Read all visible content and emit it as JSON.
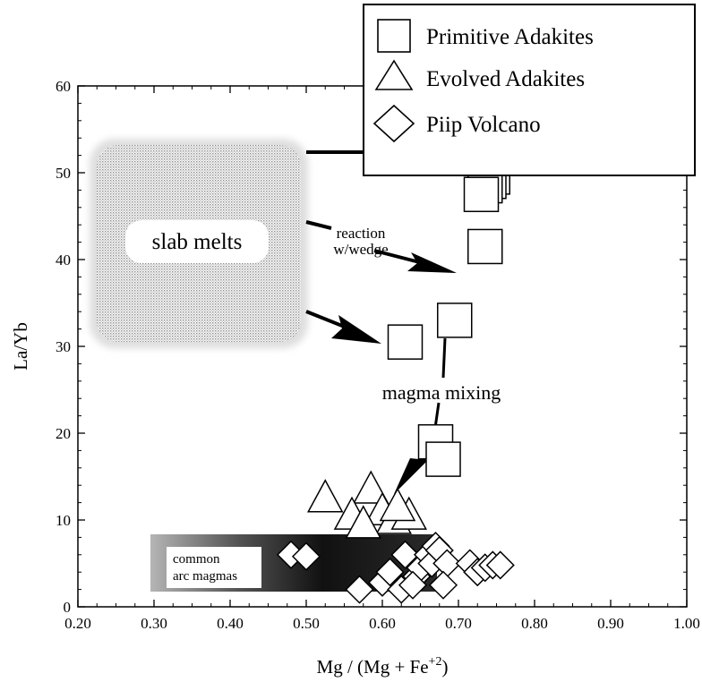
{
  "chart_data": {
    "type": "scatter",
    "xlabel": "Mg / (Mg + Fe",
    "xlabel_sup": "+2",
    "xlabel_close": ")",
    "ylabel": "La/Yb",
    "xlim": [
      0.2,
      1.0
    ],
    "ylim": [
      0,
      60
    ],
    "x_ticks": [
      0.2,
      0.3,
      0.4,
      0.5,
      0.6,
      0.7,
      0.8,
      0.9,
      1.0
    ],
    "x_tick_labels": [
      "0.20",
      "0.30",
      "0.40",
      "0.50",
      "0.60",
      "0.70",
      "0.80",
      "0.90",
      "1.00"
    ],
    "y_ticks": [
      0,
      10,
      20,
      30,
      40,
      50,
      60
    ],
    "y_tick_labels": [
      "0",
      "10",
      "20",
      "30",
      "40",
      "50",
      "60"
    ],
    "grid": false,
    "legend_position": "top-right",
    "series": [
      {
        "name": "Primitive Adakites",
        "marker": "square",
        "points": [
          {
            "x": 0.745,
            "y": 49.5
          },
          {
            "x": 0.74,
            "y": 49.0
          },
          {
            "x": 0.735,
            "y": 48.5
          },
          {
            "x": 0.73,
            "y": 47.5
          },
          {
            "x": 0.735,
            "y": 41.5
          },
          {
            "x": 0.63,
            "y": 30.5
          },
          {
            "x": 0.695,
            "y": 33.0
          },
          {
            "x": 0.67,
            "y": 19.0
          },
          {
            "x": 0.68,
            "y": 17.0
          }
        ]
      },
      {
        "name": "Evolved Adakites",
        "marker": "triangle",
        "points": [
          {
            "x": 0.525,
            "y": 12.5
          },
          {
            "x": 0.585,
            "y": 13.5
          },
          {
            "x": 0.56,
            "y": 10.5
          },
          {
            "x": 0.6,
            "y": 11.0
          },
          {
            "x": 0.615,
            "y": 10.0
          },
          {
            "x": 0.635,
            "y": 10.5
          },
          {
            "x": 0.575,
            "y": 9.5
          },
          {
            "x": 0.62,
            "y": 11.5
          }
        ]
      },
      {
        "name": "Piip Volcano",
        "marker": "diamond",
        "points": [
          {
            "x": 0.48,
            "y": 6.0
          },
          {
            "x": 0.5,
            "y": 5.8
          },
          {
            "x": 0.57,
            "y": 2.0
          },
          {
            "x": 0.6,
            "y": 2.8
          },
          {
            "x": 0.61,
            "y": 4.0
          },
          {
            "x": 0.625,
            "y": 2.0
          },
          {
            "x": 0.63,
            "y": 6.0
          },
          {
            "x": 0.645,
            "y": 3.5
          },
          {
            "x": 0.65,
            "y": 4.5
          },
          {
            "x": 0.66,
            "y": 6.0
          },
          {
            "x": 0.665,
            "y": 5.0
          },
          {
            "x": 0.67,
            "y": 7.0
          },
          {
            "x": 0.675,
            "y": 6.5
          },
          {
            "x": 0.685,
            "y": 5.0
          },
          {
            "x": 0.68,
            "y": 2.5
          },
          {
            "x": 0.64,
            "y": 2.5
          },
          {
            "x": 0.715,
            "y": 5.0
          },
          {
            "x": 0.725,
            "y": 4.0
          },
          {
            "x": 0.735,
            "y": 4.5
          },
          {
            "x": 0.745,
            "y": 4.8
          },
          {
            "x": 0.755,
            "y": 4.8
          }
        ]
      }
    ],
    "annotations": {
      "slab_melts": "slab  melts",
      "reaction_line1": "reaction",
      "reaction_line2": "w/wedge",
      "magma_mixing": "magma mixing",
      "common_line1": "common",
      "common_line2": "arc magmas"
    }
  },
  "colors": {
    "ink": "#000000",
    "slab_stipple": "#b0b0b0",
    "common_band_dark": "#1a1a1a",
    "common_band_light": "#9a9a9a",
    "background": "#ffffff"
  }
}
